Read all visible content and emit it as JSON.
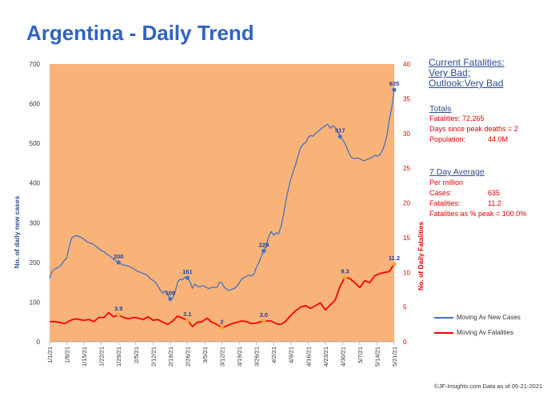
{
  "title": "Argentina - Daily Trend",
  "status": {
    "line1": "Current Fatalities:",
    "line2": "Very Bad;",
    "line3": "Outlook:Very Bad"
  },
  "totals": {
    "heading": "Totals",
    "fatalities": "Fatalities: 72,265",
    "days_since_peak": "Days since peak deaths = 2",
    "population_label": "Population:",
    "population_value": "44.0M"
  },
  "seven_day": {
    "heading": "7 Day Average",
    "per_million": "Per million",
    "cases_label": "Cases:",
    "cases_value": "635",
    "fatalities_label": "Fatalities:",
    "fatalities_value": "11.2",
    "pct_peak": "Fatalities as % peak = 100.0%"
  },
  "legend": {
    "cases": "Moving Av New Cases",
    "fatalities": "Moving Av Fatalities"
  },
  "footer": "©JF-Insights.com  Data as of 05-21-2021",
  "colors": {
    "plot_bg": "#F9B378",
    "cases": "#4472C4",
    "fatalities": "#FF0000",
    "title": "#2E63C5",
    "label_blue": "#1F3FA0",
    "marker_orange": "#F5A43A"
  },
  "chart_data": {
    "type": "line",
    "title": "Argentina - Daily Trend",
    "ylabel": "No. of daily new  cases",
    "y2label": "No. of Daily Fatalities",
    "ylim": [
      0,
      700
    ],
    "y2lim": [
      0,
      40
    ],
    "yticks": [
      0,
      100,
      200,
      300,
      400,
      500,
      600,
      700
    ],
    "y2ticks": [
      0,
      5,
      10,
      15,
      20,
      25,
      30,
      35,
      40
    ],
    "xlim": [
      "2021-01-01",
      "2021-05-21"
    ],
    "xticks": [
      "1/1/21",
      "1/8/21",
      "1/15/21",
      "1/22/21",
      "1/29/21",
      "2/5/21",
      "2/12/21",
      "2/19/21",
      "2/26/21",
      "3/5/21",
      "3/12/21",
      "3/19/21",
      "3/26/21",
      "4/2/21",
      "4/9/21",
      "4/16/21",
      "4/23/21",
      "4/30/21",
      "5/7/21",
      "5/14/21",
      "5/21/21"
    ],
    "legend_position": "bottom-right",
    "series": [
      {
        "name": "Moving Av New Cases",
        "axis": "left",
        "points": [
          [
            "2021-01-01",
            160
          ],
          [
            "2021-01-02",
            177
          ],
          [
            "2021-01-03",
            183
          ],
          [
            "2021-01-04",
            186
          ],
          [
            "2021-01-05",
            189
          ],
          [
            "2021-01-06",
            196
          ],
          [
            "2021-01-07",
            205
          ],
          [
            "2021-01-08",
            212
          ],
          [
            "2021-01-09",
            240
          ],
          [
            "2021-01-10",
            262
          ],
          [
            "2021-01-11",
            266
          ],
          [
            "2021-01-12",
            267
          ],
          [
            "2021-01-13",
            265
          ],
          [
            "2021-01-14",
            263
          ],
          [
            "2021-01-15",
            258
          ],
          [
            "2021-01-16",
            253
          ],
          [
            "2021-01-17",
            250
          ],
          [
            "2021-01-18",
            248
          ],
          [
            "2021-01-19",
            245
          ],
          [
            "2021-01-20",
            240
          ],
          [
            "2021-01-21",
            235
          ],
          [
            "2021-01-22",
            230
          ],
          [
            "2021-01-23",
            228
          ],
          [
            "2021-01-24",
            222
          ],
          [
            "2021-01-25",
            218
          ],
          [
            "2021-01-26",
            214
          ],
          [
            "2021-01-27",
            208
          ],
          [
            "2021-01-28",
            204
          ],
          [
            "2021-01-29",
            200
          ],
          [
            "2021-01-30",
            196
          ],
          [
            "2021-01-31",
            193
          ],
          [
            "2021-02-01",
            192
          ],
          [
            "2021-02-02",
            191
          ],
          [
            "2021-02-03",
            188
          ],
          [
            "2021-02-04",
            185
          ],
          [
            "2021-02-05",
            180
          ],
          [
            "2021-02-06",
            177
          ],
          [
            "2021-02-07",
            175
          ],
          [
            "2021-02-08",
            172
          ],
          [
            "2021-02-09",
            170
          ],
          [
            "2021-02-10",
            166
          ],
          [
            "2021-02-11",
            158
          ],
          [
            "2021-02-12",
            155
          ],
          [
            "2021-02-13",
            150
          ],
          [
            "2021-02-14",
            140
          ],
          [
            "2021-02-15",
            130
          ],
          [
            "2021-02-16",
            122
          ],
          [
            "2021-02-17",
            128
          ],
          [
            "2021-02-18",
            120
          ],
          [
            "2021-02-19",
            108
          ],
          [
            "2021-02-20",
            110
          ],
          [
            "2021-02-21",
            125
          ],
          [
            "2021-02-22",
            150
          ],
          [
            "2021-02-23",
            158
          ],
          [
            "2021-02-24",
            156
          ],
          [
            "2021-02-25",
            163
          ],
          [
            "2021-02-26",
            161
          ],
          [
            "2021-02-27",
            152
          ],
          [
            "2021-02-28",
            135
          ],
          [
            "2021-03-01",
            145
          ],
          [
            "2021-03-02",
            140
          ],
          [
            "2021-03-03",
            138
          ],
          [
            "2021-03-04",
            141
          ],
          [
            "2021-03-05",
            140
          ],
          [
            "2021-03-06",
            136
          ],
          [
            "2021-03-07",
            134
          ],
          [
            "2021-03-08",
            138
          ],
          [
            "2021-03-09",
            137
          ],
          [
            "2021-03-10",
            137
          ],
          [
            "2021-03-11",
            150
          ],
          [
            "2021-03-12",
            148
          ],
          [
            "2021-03-13",
            137
          ],
          [
            "2021-03-14",
            132
          ],
          [
            "2021-03-15",
            130
          ],
          [
            "2021-03-16",
            132
          ],
          [
            "2021-03-17",
            134
          ],
          [
            "2021-03-18",
            140
          ],
          [
            "2021-03-19",
            148
          ],
          [
            "2021-03-20",
            158
          ],
          [
            "2021-03-21",
            162
          ],
          [
            "2021-03-22",
            165
          ],
          [
            "2021-03-23",
            168
          ],
          [
            "2021-03-24",
            166
          ],
          [
            "2021-03-25",
            170
          ],
          [
            "2021-03-26",
            188
          ],
          [
            "2021-03-27",
            200
          ],
          [
            "2021-03-28",
            215
          ],
          [
            "2021-03-29",
            229
          ],
          [
            "2021-03-30",
            240
          ],
          [
            "2021-03-31",
            265
          ],
          [
            "2021-04-01",
            278
          ],
          [
            "2021-04-02",
            268
          ],
          [
            "2021-04-03",
            275
          ],
          [
            "2021-04-04",
            272
          ],
          [
            "2021-04-05",
            290
          ],
          [
            "2021-04-06",
            320
          ],
          [
            "2021-04-07",
            355
          ],
          [
            "2021-04-08",
            385
          ],
          [
            "2021-04-09",
            410
          ],
          [
            "2021-04-10",
            430
          ],
          [
            "2021-04-11",
            448
          ],
          [
            "2021-04-12",
            470
          ],
          [
            "2021-04-13",
            490
          ],
          [
            "2021-04-14",
            498
          ],
          [
            "2021-04-15",
            502
          ],
          [
            "2021-04-16",
            515
          ],
          [
            "2021-04-17",
            520
          ],
          [
            "2021-04-18",
            518
          ],
          [
            "2021-04-19",
            525
          ],
          [
            "2021-04-20",
            530
          ],
          [
            "2021-04-21",
            535
          ],
          [
            "2021-04-22",
            540
          ],
          [
            "2021-04-23",
            545
          ],
          [
            "2021-04-24",
            548
          ],
          [
            "2021-04-25",
            538
          ],
          [
            "2021-04-26",
            544
          ],
          [
            "2021-04-27",
            540
          ],
          [
            "2021-04-28",
            530
          ],
          [
            "2021-04-29",
            517
          ],
          [
            "2021-04-30",
            510
          ],
          [
            "2021-05-01",
            500
          ],
          [
            "2021-05-02",
            485
          ],
          [
            "2021-05-03",
            470
          ],
          [
            "2021-05-04",
            463
          ],
          [
            "2021-05-05",
            462
          ],
          [
            "2021-05-06",
            463
          ],
          [
            "2021-05-07",
            462
          ],
          [
            "2021-05-08",
            458
          ],
          [
            "2021-05-09",
            456
          ],
          [
            "2021-05-10",
            460
          ],
          [
            "2021-05-11",
            462
          ],
          [
            "2021-05-12",
            465
          ],
          [
            "2021-05-13",
            470
          ],
          [
            "2021-05-14",
            468
          ],
          [
            "2021-05-15",
            470
          ],
          [
            "2021-05-16",
            480
          ],
          [
            "2021-05-17",
            495
          ],
          [
            "2021-05-18",
            520
          ],
          [
            "2021-05-19",
            560
          ],
          [
            "2021-05-20",
            590
          ],
          [
            "2021-05-21",
            635
          ]
        ],
        "labels": [
          [
            "2021-01-29",
            200,
            "200"
          ],
          [
            "2021-02-19",
            108,
            "108"
          ],
          [
            "2021-02-26",
            161,
            "161"
          ],
          [
            "2021-03-29",
            229,
            "229"
          ],
          [
            "2021-04-29",
            517,
            "517"
          ],
          [
            "2021-05-21",
            635,
            "635"
          ]
        ]
      },
      {
        "name": "Moving Av Fatalities",
        "axis": "right",
        "points": [
          [
            "2021-01-01",
            2.9
          ],
          [
            "2021-01-03",
            2.9
          ],
          [
            "2021-01-05",
            2.8
          ],
          [
            "2021-01-07",
            2.6
          ],
          [
            "2021-01-09",
            3.0
          ],
          [
            "2021-01-11",
            3.3
          ],
          [
            "2021-01-13",
            3.2
          ],
          [
            "2021-01-15",
            3.1
          ],
          [
            "2021-01-17",
            3.2
          ],
          [
            "2021-01-19",
            2.9
          ],
          [
            "2021-01-21",
            3.5
          ],
          [
            "2021-01-23",
            3.5
          ],
          [
            "2021-01-25",
            4.2
          ],
          [
            "2021-01-27",
            3.6
          ],
          [
            "2021-01-29",
            3.9
          ],
          [
            "2021-01-31",
            3.5
          ],
          [
            "2021-02-02",
            3.3
          ],
          [
            "2021-02-04",
            3.5
          ],
          [
            "2021-02-06",
            3.4
          ],
          [
            "2021-02-08",
            3.2
          ],
          [
            "2021-02-10",
            3.6
          ],
          [
            "2021-02-12",
            3.1
          ],
          [
            "2021-02-14",
            3.2
          ],
          [
            "2021-02-16",
            2.8
          ],
          [
            "2021-02-18",
            2.5
          ],
          [
            "2021-02-20",
            3.0
          ],
          [
            "2021-02-22",
            3.7
          ],
          [
            "2021-02-24",
            3.4
          ],
          [
            "2021-02-26",
            3.1
          ],
          [
            "2021-02-28",
            2.2
          ],
          [
            "2021-03-02",
            2.8
          ],
          [
            "2021-03-04",
            2.9
          ],
          [
            "2021-03-06",
            3.4
          ],
          [
            "2021-03-08",
            2.8
          ],
          [
            "2021-03-10",
            2.5
          ],
          [
            "2021-03-12",
            2.0
          ],
          [
            "2021-03-14",
            2.3
          ],
          [
            "2021-03-16",
            2.6
          ],
          [
            "2021-03-18",
            2.8
          ],
          [
            "2021-03-20",
            3.0
          ],
          [
            "2021-03-22",
            2.9
          ],
          [
            "2021-03-24",
            2.6
          ],
          [
            "2021-03-26",
            2.7
          ],
          [
            "2021-03-28",
            2.9
          ],
          [
            "2021-03-30",
            3.0
          ],
          [
            "2021-04-01",
            3.0
          ],
          [
            "2021-04-03",
            2.6
          ],
          [
            "2021-04-05",
            2.5
          ],
          [
            "2021-04-07",
            3.0
          ],
          [
            "2021-04-09",
            3.8
          ],
          [
            "2021-04-11",
            4.5
          ],
          [
            "2021-04-13",
            5.0
          ],
          [
            "2021-04-15",
            5.2
          ],
          [
            "2021-04-17",
            4.8
          ],
          [
            "2021-04-19",
            5.2
          ],
          [
            "2021-04-21",
            5.6
          ],
          [
            "2021-04-23",
            4.6
          ],
          [
            "2021-04-25",
            5.3
          ],
          [
            "2021-04-27",
            6.0
          ],
          [
            "2021-04-29",
            8.0
          ],
          [
            "2021-05-01",
            9.3
          ],
          [
            "2021-05-03",
            9.1
          ],
          [
            "2021-05-05",
            8.5
          ],
          [
            "2021-05-07",
            7.8
          ],
          [
            "2021-05-09",
            8.8
          ],
          [
            "2021-05-11",
            8.5
          ],
          [
            "2021-05-13",
            9.5
          ],
          [
            "2021-05-15",
            9.8
          ],
          [
            "2021-05-17",
            10.0
          ],
          [
            "2021-05-19",
            10.1
          ],
          [
            "2021-05-21",
            11.2
          ]
        ],
        "labels": [
          [
            "2021-01-29",
            3.9,
            "3.9"
          ],
          [
            "2021-02-26",
            3.1,
            "3.1"
          ],
          [
            "2021-03-12",
            2.0,
            "2"
          ],
          [
            "2021-03-29",
            3.0,
            "3.0"
          ],
          [
            "2021-05-01",
            9.3,
            "9.3"
          ],
          [
            "2021-05-21",
            11.2,
            "11.2"
          ]
        ]
      }
    ]
  }
}
